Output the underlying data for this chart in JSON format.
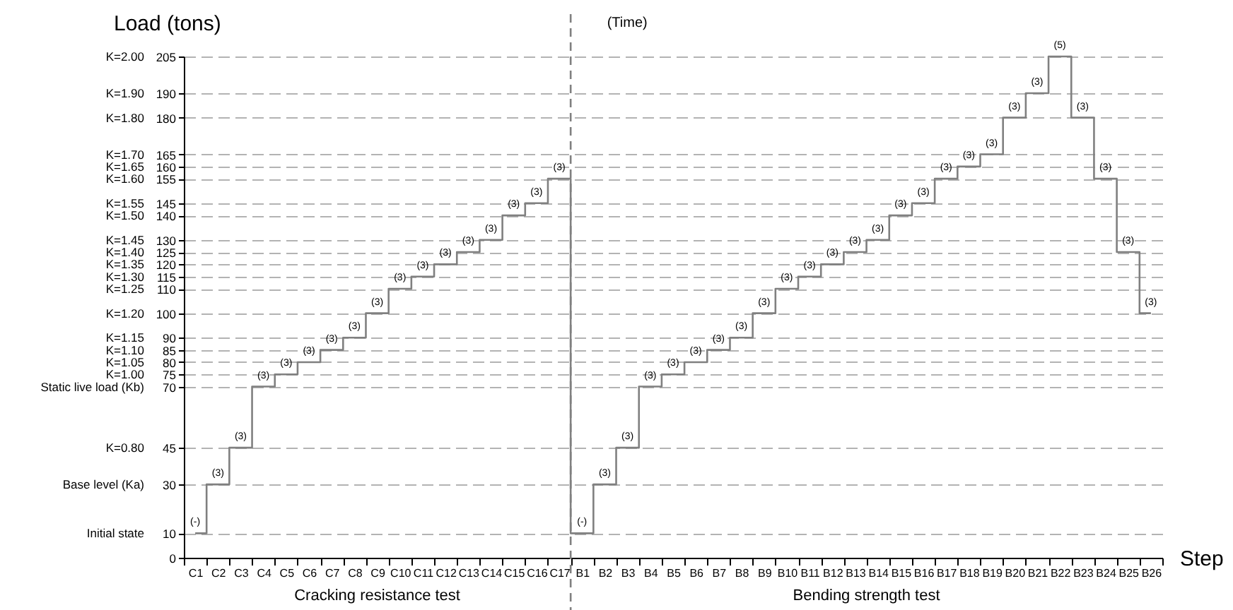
{
  "chart_data": {
    "type": "step",
    "xlabel": "Step",
    "ylabel": "Load (tons)",
    "categories": [
      "C1",
      "C2",
      "C3",
      "C4",
      "C5",
      "C6",
      "C7",
      "C8",
      "C9",
      "C10",
      "C11",
      "C12",
      "C13",
      "C14",
      "C15",
      "C16",
      "C17",
      "B1",
      "B2",
      "B3",
      "B4",
      "B5",
      "B6",
      "B7",
      "B8",
      "B9",
      "B10",
      "B11",
      "B12",
      "B13",
      "B14",
      "B15",
      "B16",
      "B17",
      "B18",
      "B19",
      "B20",
      "B21",
      "B22",
      "B23",
      "B24",
      "B25",
      "B26"
    ],
    "series": [
      {
        "color": "#808080",
        "values": [
          10,
          30,
          45,
          70,
          75,
          80,
          85,
          90,
          100,
          110,
          115,
          120,
          125,
          130,
          140,
          145,
          155,
          10,
          30,
          45,
          70,
          75,
          80,
          85,
          90,
          100,
          110,
          115,
          120,
          125,
          130,
          140,
          145,
          155,
          160,
          165,
          180,
          190,
          205,
          180,
          155,
          125,
          100
        ]
      }
    ],
    "ylim": [
      0,
      205
    ],
    "yticks": [
      0,
      10,
      30,
      45,
      70,
      75,
      80,
      85,
      90,
      100,
      110,
      115,
      120,
      125,
      130,
      140,
      145,
      155,
      160,
      165,
      180,
      190,
      205
    ],
    "grid": "y",
    "marker": "none",
    "ref_lines": [
      {
        "axis": "x",
        "value": "B1",
        "color": "#808080",
        "line_style": "dashed"
      }
    ],
    "annotations": [
      "(Time)",
      "Cracking resistance test",
      "Bending strength test",
      "Initial state",
      "Base level (Ka)",
      "K=0.80",
      "Static live load (Kb)",
      "K=1.00",
      "K=1.05",
      "K=1.10",
      "K=1.15",
      "K=1.20",
      "K=1.25",
      "K=1.30",
      "K=1.35",
      "K=1.40",
      "K=1.45",
      "K=1.50",
      "K=1.55",
      "K=1.60",
      "K=1.65",
      "K=1.70",
      "K=1.80",
      "K=1.90",
      "K=2.00",
      {
        "text": "(-)",
        "x": "C1",
        "y": 10
      },
      {
        "text": "(3)",
        "x": "C2",
        "y": 30
      },
      {
        "text": "(3)",
        "x": "C3",
        "y": 45
      },
      {
        "text": "(3)",
        "x": "C4",
        "y": 70
      },
      {
        "text": "(3)",
        "x": "C5",
        "y": 75
      },
      {
        "text": "(3)",
        "x": "C6",
        "y": 80
      },
      {
        "text": "(3)",
        "x": "C7",
        "y": 85
      },
      {
        "text": "(3)",
        "x": "C8",
        "y": 90
      },
      {
        "text": "(3)",
        "x": "C9",
        "y": 100
      },
      {
        "text": "(3)",
        "x": "C10",
        "y": 110
      },
      {
        "text": "(3)",
        "x": "C11",
        "y": 115
      },
      {
        "text": "(3)",
        "x": "C12",
        "y": 120
      },
      {
        "text": "(3)",
        "x": "C13",
        "y": 125
      },
      {
        "text": "(3)",
        "x": "C14",
        "y": 130
      },
      {
        "text": "(3)",
        "x": "C15",
        "y": 140
      },
      {
        "text": "(3)",
        "x": "C16",
        "y": 145
      },
      {
        "text": "(3)",
        "x": "C17",
        "y": 155
      },
      {
        "text": "(-)",
        "x": "B1",
        "y": 10
      },
      {
        "text": "(3)",
        "x": "B2",
        "y": 30
      },
      {
        "text": "(3)",
        "x": "B3",
        "y": 45
      },
      {
        "text": "(3)",
        "x": "B4",
        "y": 70
      },
      {
        "text": "(3)",
        "x": "B5",
        "y": 75
      },
      {
        "text": "(3)",
        "x": "B6",
        "y": 80
      },
      {
        "text": "(3)",
        "x": "B7",
        "y": 85
      },
      {
        "text": "(3)",
        "x": "B8",
        "y": 90
      },
      {
        "text": "(3)",
        "x": "B9",
        "y": 100
      },
      {
        "text": "(3)",
        "x": "B10",
        "y": 110
      },
      {
        "text": "(3)",
        "x": "B11",
        "y": 115
      },
      {
        "text": "(3)",
        "x": "B12",
        "y": 120
      },
      {
        "text": "(3)",
        "x": "B13",
        "y": 125
      },
      {
        "text": "(3)",
        "x": "B14",
        "y": 130
      },
      {
        "text": "(3)",
        "x": "B15",
        "y": 140
      },
      {
        "text": "(3)",
        "x": "B16",
        "y": 145
      },
      {
        "text": "(3)",
        "x": "B17",
        "y": 155
      },
      {
        "text": "(3)",
        "x": "B18",
        "y": 160
      },
      {
        "text": "(3)",
        "x": "B19",
        "y": 165
      },
      {
        "text": "(3)",
        "x": "B20",
        "y": 180
      },
      {
        "text": "(3)",
        "x": "B21",
        "y": 190
      },
      {
        "text": "(5)",
        "x": "B22",
        "y": 205
      },
      {
        "text": "(3)",
        "x": "B23",
        "y": 180
      },
      {
        "text": "(3)",
        "x": "B24",
        "y": 155
      },
      {
        "text": "(3)",
        "x": "B25",
        "y": 125
      },
      {
        "text": "(3)",
        "x": "B26",
        "y": 100
      }
    ]
  }
}
